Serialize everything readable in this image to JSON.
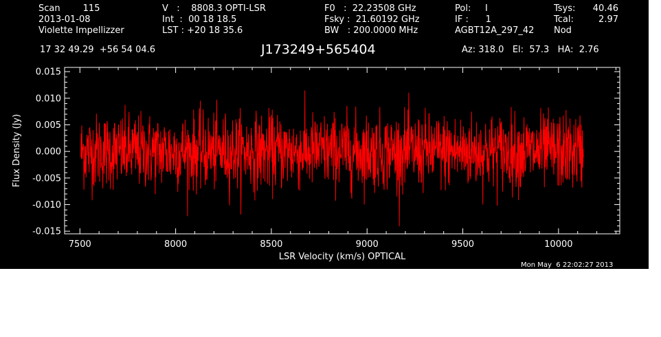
{
  "header": {
    "col1": [
      "Scan        115",
      "2013-01-08",
      "Violette Impellizzer"
    ],
    "col2": [
      "V   :    8808.3 OPTI-LSR",
      "Int  :  00 18 18.5",
      "LST : +20 18 35.6"
    ],
    "col3": [
      "F0   :  22.23508 GHz",
      "Fsky :  21.60192 GHz",
      "BW   : 200.0000 MHz"
    ],
    "col4": [
      "Pol:     I",
      "IF :      1",
      "AGBT12A_297_42"
    ],
    "col5a": [
      "Tsys:",
      "Tcal:",
      "Nod"
    ],
    "col5b": [
      "40.46",
      "2.97",
      ""
    ],
    "coords": "17 32 49.29  +56 54 04.6",
    "source": "J173249+565404",
    "pointing": "Az: 318.0   El:  57.3   HA:  2.76"
  },
  "footer_timestamp": "Mon May  6 22:02:27 2013",
  "colors": {
    "background": "#000000",
    "axes": "#ffffff",
    "series": "#ff0000",
    "page": "#ffffff"
  },
  "chart_data": {
    "type": "line",
    "title": "J173249+565404",
    "xlabel": "LSR Velocity (km/s) OPTICAL",
    "ylabel": "Flux Density (Jy)",
    "xlim": [
      7420,
      10320
    ],
    "ylim": [
      -0.0155,
      0.0158
    ],
    "x_ticks": [
      7500,
      8000,
      8500,
      9000,
      9500,
      10000
    ],
    "y_ticks": [
      -0.015,
      -0.01,
      -0.005,
      0.0,
      0.005,
      0.01,
      0.015
    ],
    "y_tick_labels": [
      "-0.015",
      "-0.010",
      "-0.005",
      "0.000",
      "0.005",
      "0.010",
      "0.015"
    ],
    "grid": false,
    "series": [
      {
        "x_start": 7505,
        "x_end": 10130,
        "points": 1650,
        "noise_rms": 0.0035,
        "mean": 0.0
      }
    ]
  }
}
